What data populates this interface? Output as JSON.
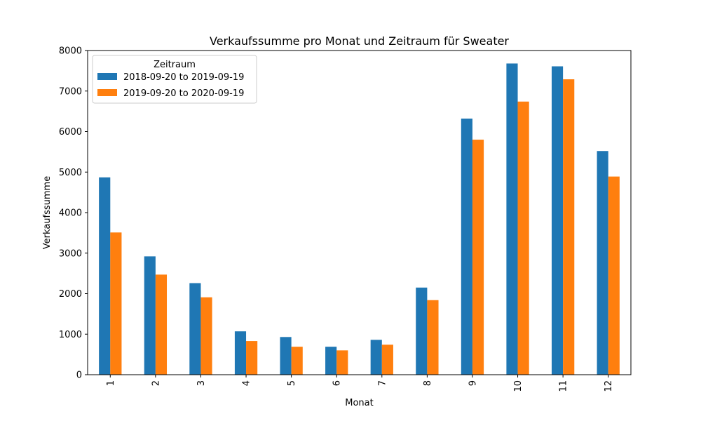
{
  "chart_data": {
    "type": "bar",
    "title": "Verkaufssumme pro Monat und Zeitraum für Sweater",
    "xlabel": "Monat",
    "ylabel": "Verkaufssumme",
    "ylim": [
      0,
      8000
    ],
    "yticks": [
      0,
      1000,
      2000,
      3000,
      4000,
      5000,
      6000,
      7000,
      8000
    ],
    "categories": [
      "1",
      "2",
      "3",
      "4",
      "5",
      "6",
      "7",
      "8",
      "9",
      "10",
      "11",
      "12"
    ],
    "legend_title": "Zeitraum",
    "legend_position": "top-left",
    "grid": false,
    "series": [
      {
        "name": "2018-09-20 to 2019-09-19",
        "color": "#1f77b4",
        "values": [
          4870,
          2920,
          2260,
          1070,
          930,
          690,
          860,
          2150,
          6320,
          7680,
          7610,
          5520
        ]
      },
      {
        "name": "2019-09-20 to 2020-09-19",
        "color": "#ff7f0e",
        "values": [
          3510,
          2470,
          1910,
          830,
          690,
          600,
          740,
          1840,
          5800,
          6740,
          7290,
          4890
        ]
      }
    ]
  }
}
